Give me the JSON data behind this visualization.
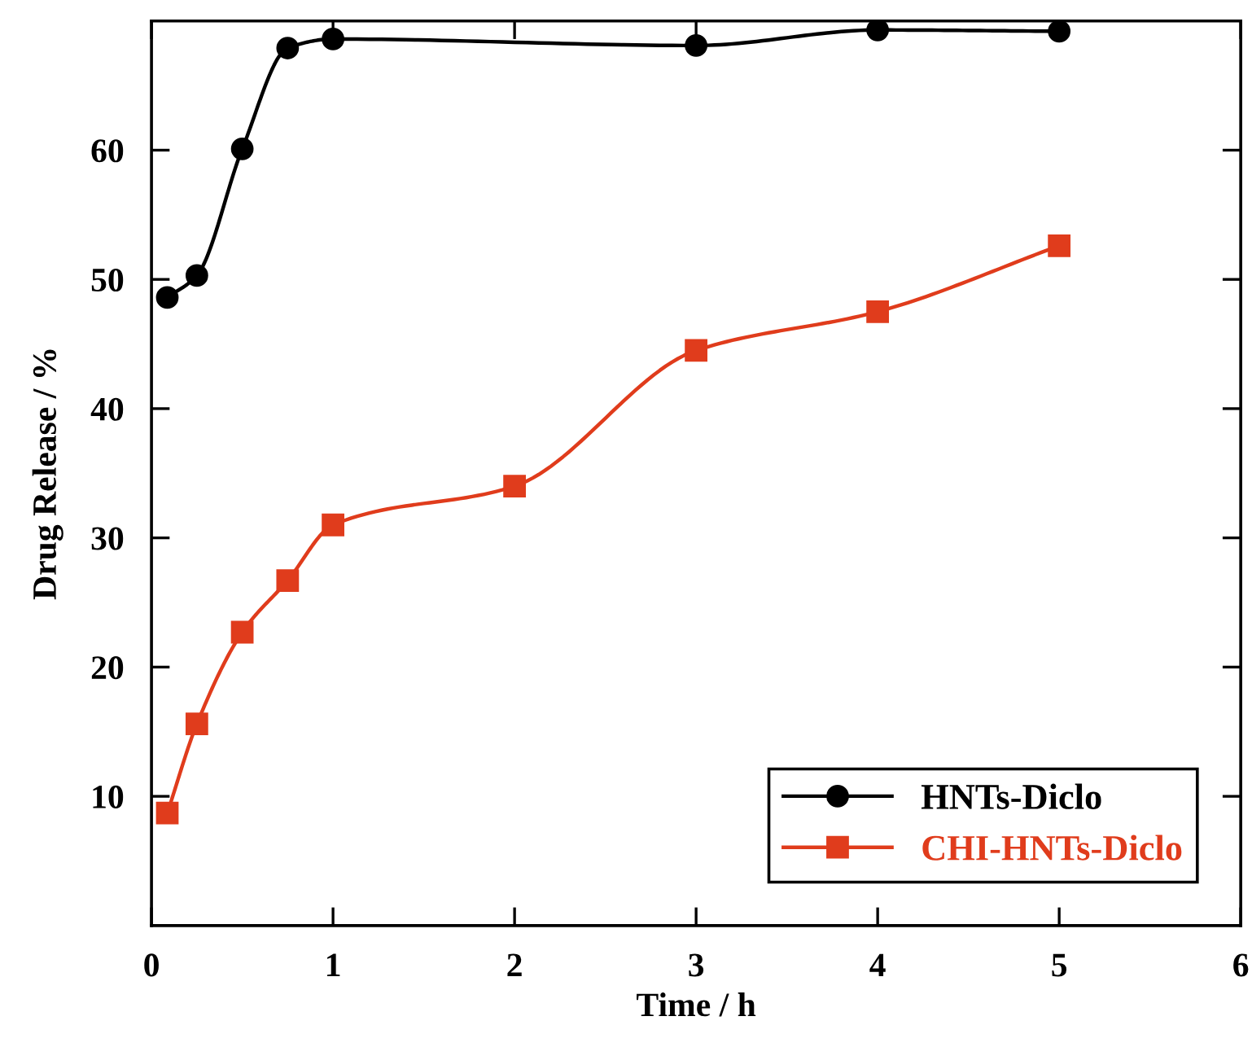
{
  "chart_data": {
    "type": "line",
    "xlabel": "Time / h",
    "ylabel": "Drug Release / %",
    "xlim": [
      0,
      6
    ],
    "xticks": [
      0,
      1,
      2,
      3,
      4,
      5,
      6
    ],
    "ylim": [
      0,
      70
    ],
    "yticks": [
      10,
      20,
      30,
      40,
      50,
      60
    ],
    "grid": false,
    "legend": "bottom right",
    "line_style": "solid",
    "series": [
      {
        "name": "HNTs-Diclo",
        "color": "#000000",
        "marker": "circle",
        "x": [
          0.087,
          0.25,
          0.5,
          0.75,
          1,
          3,
          4,
          5
        ],
        "values": [
          48.6,
          50.3,
          60.1,
          67.9,
          68.6,
          68.1,
          69.3,
          69.2
        ]
      },
      {
        "name": "CHI-HNTs-Diclo",
        "color": "#e03c1c",
        "marker": "square",
        "x": [
          0.087,
          0.25,
          0.5,
          0.75,
          1,
          2,
          3,
          4,
          5
        ],
        "values": [
          8.7,
          15.6,
          22.7,
          26.7,
          31.0,
          34.0,
          44.5,
          47.5,
          52.6
        ]
      }
    ]
  }
}
